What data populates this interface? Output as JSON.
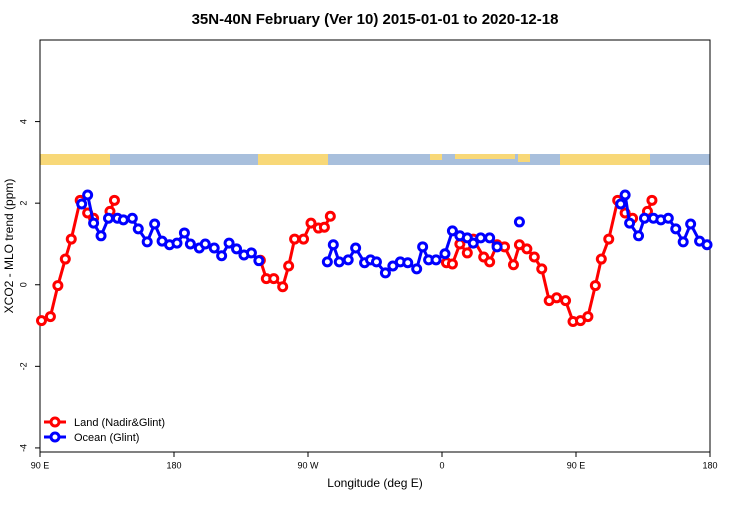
{
  "chart_data": {
    "type": "line",
    "title": "35N-40N February (Ver 10)   2015-01-01 to 2020-12-18",
    "x_label": "Longitude (deg E)",
    "y_label": "XCO2 - MLO trend (ppm)",
    "xlim": [
      90,
      540
    ],
    "xticks": [
      {
        "value": 90,
        "label": "90 E"
      },
      {
        "value": 180,
        "label": "180"
      },
      {
        "value": 270,
        "label": "90 W"
      },
      {
        "value": 360,
        "label": "0"
      },
      {
        "value": 450,
        "label": "90 E"
      },
      {
        "value": 540,
        "label": "180"
      }
    ],
    "ylim": [
      -4.1,
      6
    ],
    "yticks": [
      -4,
      -2,
      0,
      2,
      4
    ],
    "legend": "bottomleft",
    "series": [
      {
        "name": "Land (Nadir&Glint)",
        "color": "#ff0000",
        "x": [
          91,
          97,
          102,
          107,
          111,
          117,
          122,
          126,
          132,
          137,
          140,
          200,
          238,
          242,
          247,
          253,
          257,
          261,
          267,
          272,
          277,
          281,
          285,
          370,
          363,
          367,
          372,
          377,
          381,
          388,
          392,
          397,
          402,
          408,
          412,
          417,
          422,
          427,
          432,
          437,
          443,
          448,
          453,
          458,
          463,
          467,
          472,
          478,
          483,
          488,
          493,
          498,
          501
        ],
        "values": [
          -0.88,
          -0.78,
          -0.02,
          0.63,
          1.12,
          2.07,
          1.76,
          1.63,
          null,
          1.8,
          2.07,
          null,
          0.6,
          0.15,
          0.15,
          -0.05,
          0.46,
          1.12,
          1.12,
          1.51,
          1.39,
          1.41,
          1.68,
          null,
          0.54,
          0.51,
          1.0,
          0.78,
          1.12,
          0.68,
          0.56,
          0.98,
          0.93,
          0.49,
          0.98,
          0.88,
          0.68,
          0.39,
          -0.39,
          -0.32,
          -0.39,
          -0.9,
          -0.88,
          -0.78,
          -0.02,
          0.63,
          1.12,
          2.07,
          1.76,
          1.63,
          null,
          1.8,
          2.07
        ]
      },
      {
        "name": "Ocean (Glint)",
        "color": "#0000ff",
        "x": [
          118,
          122,
          126,
          131,
          136,
          142,
          146,
          152,
          156,
          162,
          167,
          172,
          177,
          182,
          187,
          191,
          197,
          201,
          207,
          212,
          217,
          222,
          227,
          232,
          237,
          260,
          283,
          287,
          291,
          297,
          302,
          308,
          312,
          316,
          322,
          327,
          332,
          337,
          343,
          347,
          351,
          356,
          362,
          367,
          372,
          377,
          381,
          386,
          392,
          397,
          403,
          412,
          450,
          480,
          483,
          486,
          492,
          496,
          502,
          507,
          512,
          517,
          522,
          527,
          533,
          538
        ],
        "values": [
          1.98,
          2.2,
          1.51,
          1.2,
          1.63,
          1.63,
          1.59,
          1.63,
          1.37,
          1.05,
          1.49,
          1.07,
          0.98,
          1.02,
          1.27,
          1.0,
          0.9,
          1.0,
          0.9,
          0.71,
          1.02,
          0.88,
          0.73,
          0.78,
          0.59,
          null,
          0.56,
          0.98,
          0.56,
          0.61,
          0.9,
          0.54,
          0.61,
          0.56,
          0.29,
          0.46,
          0.56,
          0.54,
          0.39,
          0.93,
          0.61,
          0.61,
          0.76,
          1.32,
          1.2,
          1.15,
          1.02,
          1.15,
          1.15,
          0.93,
          null,
          1.54,
          null,
          1.98,
          2.2,
          1.51,
          1.2,
          1.63,
          1.63,
          1.59,
          1.63,
          1.37,
          1.05,
          1.49,
          1.07,
          0.98
        ]
      }
    ]
  }
}
